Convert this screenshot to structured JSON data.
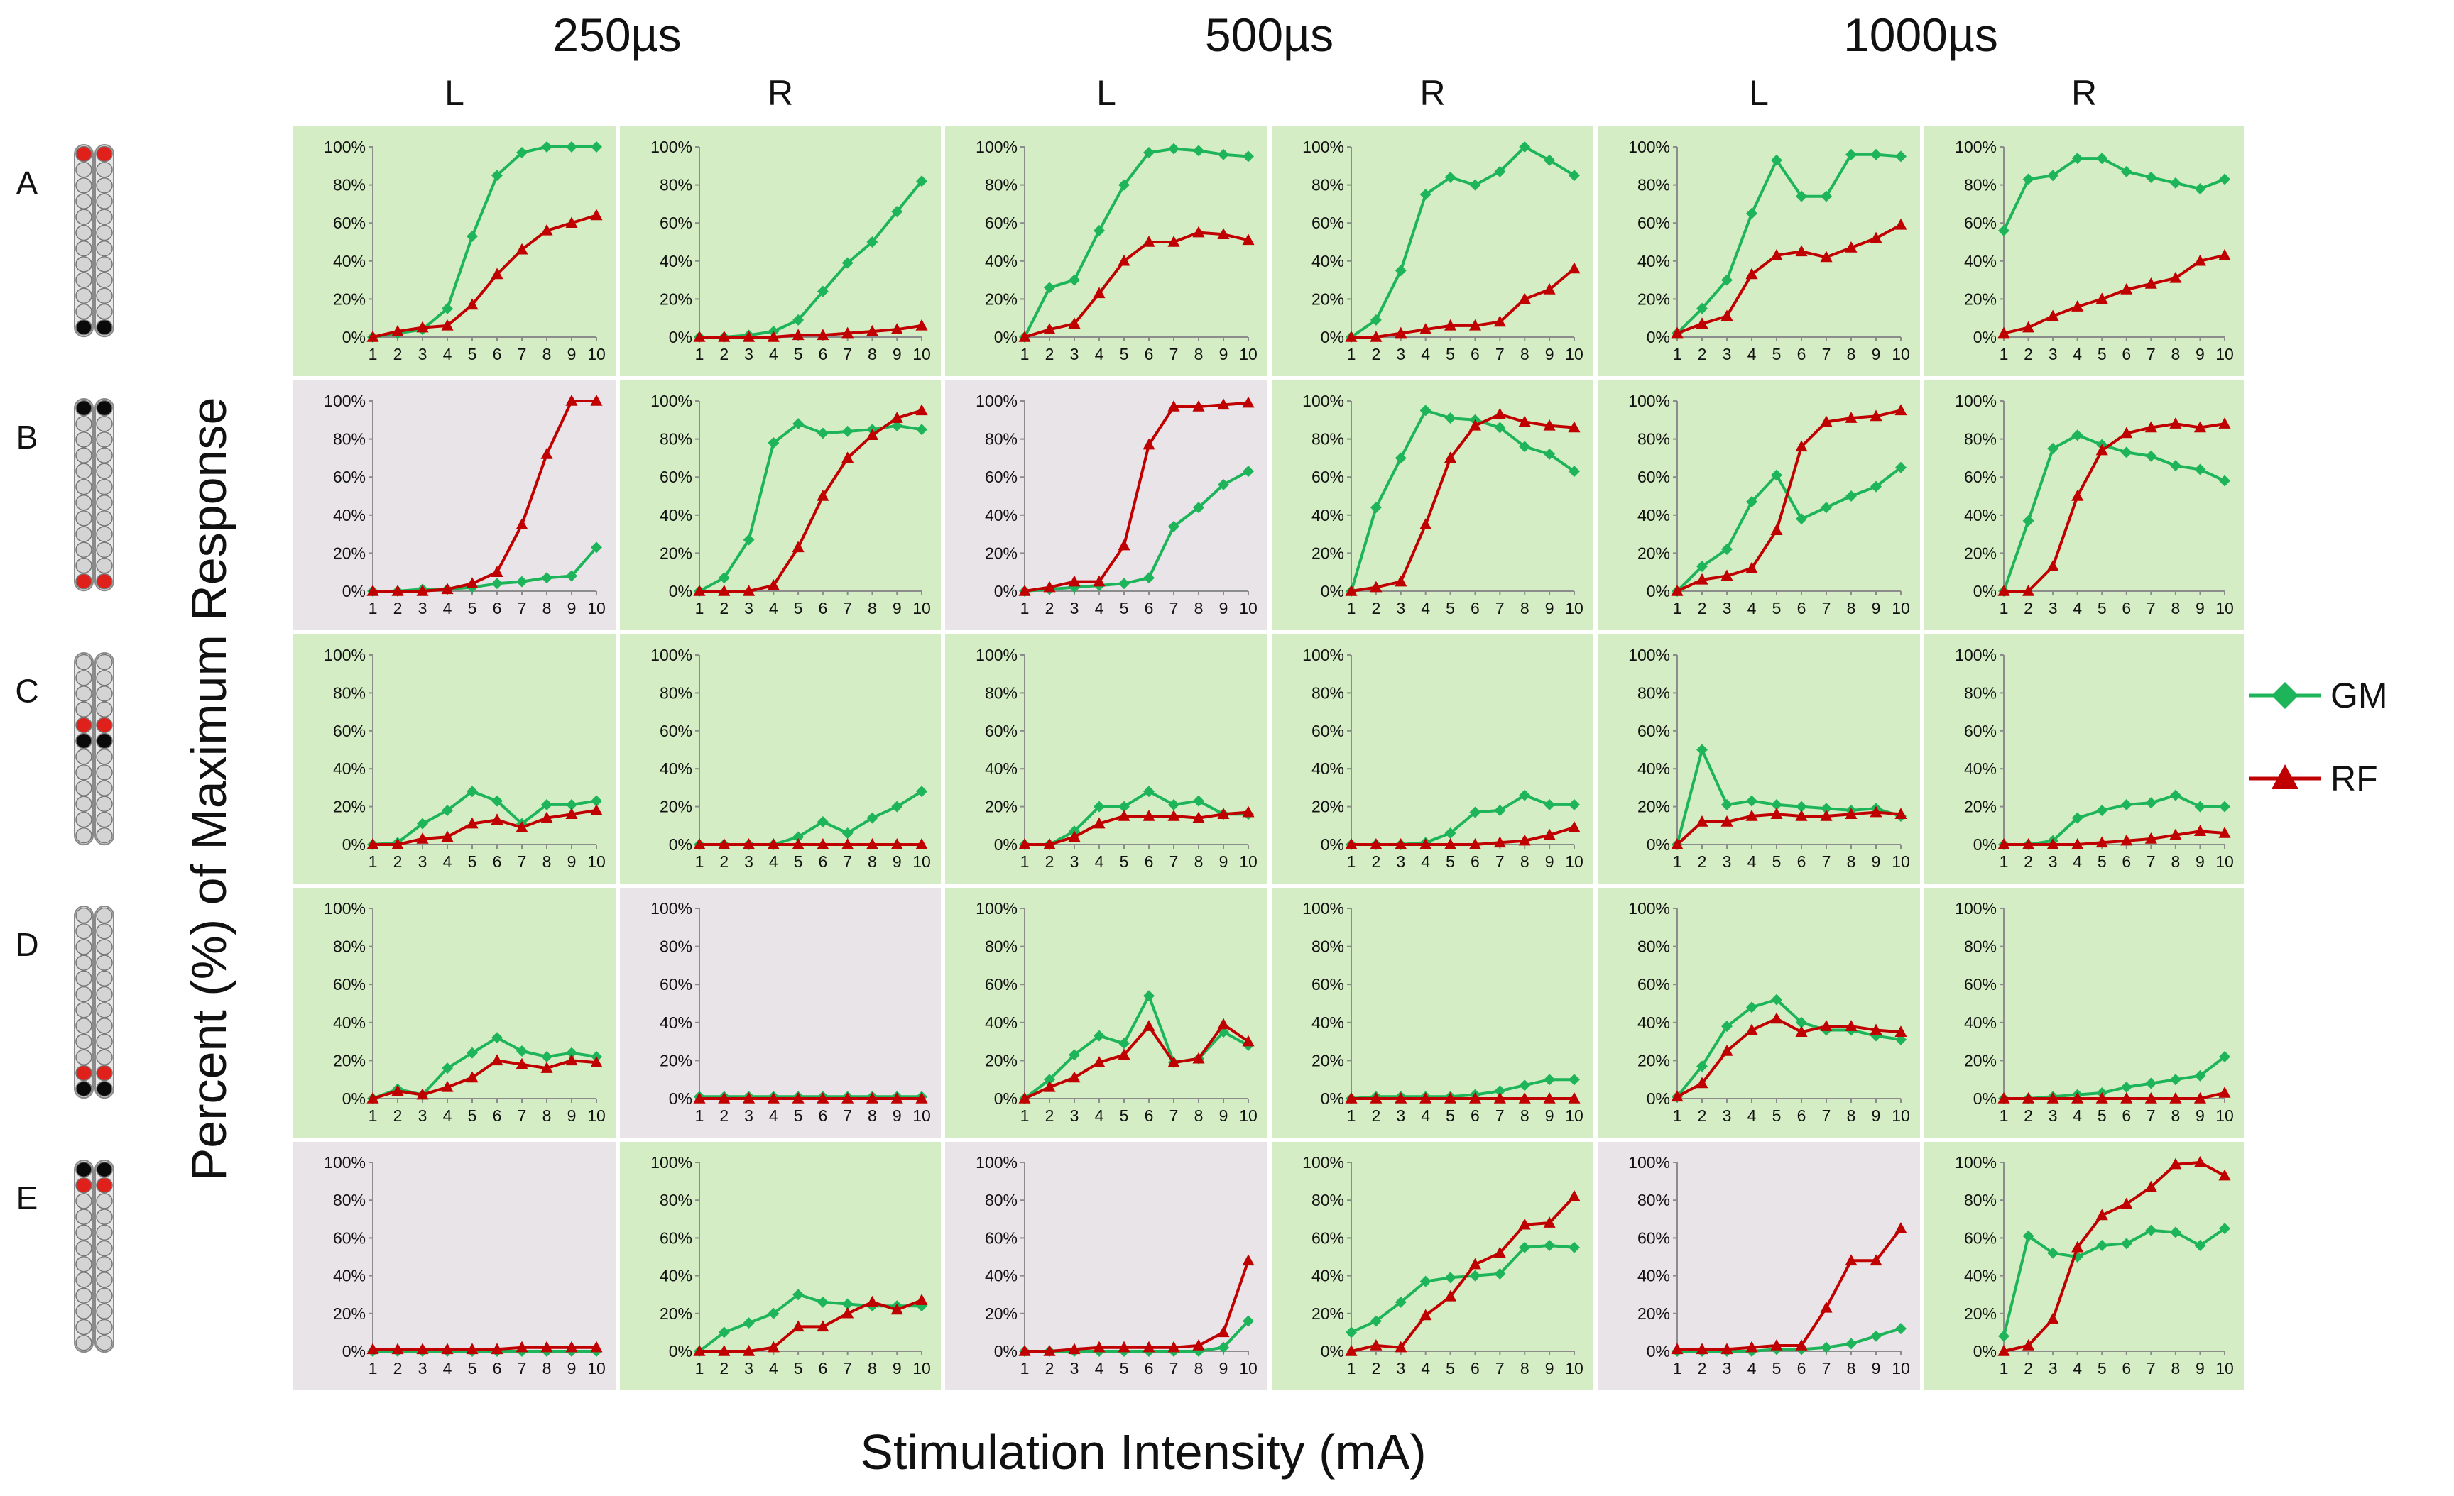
{
  "figure": {
    "ylabel": "Percent (%) of Maximum Response",
    "xlabel": "Stimulation Intensity (mA)",
    "pulse_widths": [
      "250µs",
      "500µs",
      "1000µs"
    ],
    "sides": [
      "L",
      "R",
      "L",
      "R",
      "L",
      "R"
    ],
    "rows": [
      "A",
      "B",
      "C",
      "D",
      "E"
    ],
    "y_ticks": [
      "0%",
      "20%",
      "40%",
      "60%",
      "80%",
      "100%"
    ],
    "x_ticks": [
      "1",
      "2",
      "3",
      "4",
      "5",
      "6",
      "7",
      "8",
      "9",
      "10"
    ],
    "legend": [
      {
        "name": "GM",
        "color": "#1db45a",
        "marker": "diamond"
      },
      {
        "name": "RF",
        "color": "#c00000",
        "marker": "triangle"
      }
    ],
    "colors": {
      "green_bg": "#d5edc4",
      "gray_bg": "#e8e4e7",
      "gm": "#1db45a",
      "rf": "#c00000",
      "contact_gray": "#d4d4d4",
      "contact_red": "#e0201b",
      "contact_black": "#0a0a0a"
    },
    "electrode_configs": [
      {
        "row": "A",
        "red": [
          0
        ],
        "black": [
          11
        ]
      },
      {
        "row": "B",
        "red": [
          11
        ],
        "black": [
          0
        ]
      },
      {
        "row": "C",
        "red": [
          4
        ],
        "black": [
          5
        ]
      },
      {
        "row": "D",
        "red": [
          10
        ],
        "black": [
          11
        ]
      },
      {
        "row": "E",
        "red": [
          1
        ],
        "black": [
          0
        ]
      }
    ]
  },
  "chart_data": {
    "type": "line",
    "x": [
      1,
      2,
      3,
      4,
      5,
      6,
      7,
      8,
      9,
      10
    ],
    "ylim": [
      0,
      100
    ],
    "xlabel": "Stimulation Intensity (mA)",
    "ylabel": "Percent (%) of Maximum Response",
    "panels": [
      {
        "row": "A",
        "pulse_width": "250µs",
        "side": "L",
        "background": "green",
        "GM": [
          0,
          2,
          4,
          15,
          53,
          85,
          97,
          100,
          100,
          100
        ],
        "RF": [
          0,
          3,
          5,
          6,
          17,
          33,
          46,
          56,
          60,
          64
        ]
      },
      {
        "row": "A",
        "pulse_width": "250µs",
        "side": "R",
        "background": "green",
        "GM": [
          0,
          0,
          1,
          3,
          9,
          24,
          39,
          50,
          66,
          82
        ],
        "RF": [
          0,
          0,
          0,
          0,
          1,
          1,
          2,
          3,
          4,
          6
        ]
      },
      {
        "row": "A",
        "pulse_width": "500µs",
        "side": "L",
        "background": "green",
        "GM": [
          0,
          26,
          30,
          56,
          80,
          97,
          99,
          98,
          96,
          95
        ],
        "RF": [
          0,
          4,
          7,
          23,
          40,
          50,
          50,
          55,
          54,
          51
        ]
      },
      {
        "row": "A",
        "pulse_width": "500µs",
        "side": "R",
        "background": "green",
        "GM": [
          0,
          9,
          35,
          75,
          84,
          80,
          87,
          100,
          93,
          85
        ],
        "RF": [
          0,
          0,
          2,
          4,
          6,
          6,
          8,
          20,
          25,
          36
        ]
      },
      {
        "row": "A",
        "pulse_width": "1000µs",
        "side": "L",
        "background": "green",
        "GM": [
          2,
          15,
          30,
          65,
          93,
          74,
          74,
          96,
          96,
          95
        ],
        "RF": [
          2,
          7,
          11,
          33,
          43,
          45,
          42,
          47,
          52,
          59
        ]
      },
      {
        "row": "A",
        "pulse_width": "1000µs",
        "side": "R",
        "background": "green",
        "GM": [
          56,
          83,
          85,
          94,
          94,
          87,
          84,
          81,
          78,
          83
        ],
        "RF": [
          2,
          5,
          11,
          16,
          20,
          25,
          28,
          31,
          40,
          43
        ]
      },
      {
        "row": "B",
        "pulse_width": "250µs",
        "side": "L",
        "background": "gray",
        "GM": [
          0,
          0,
          1,
          1,
          2,
          4,
          5,
          7,
          8,
          23
        ],
        "RF": [
          0,
          0,
          0,
          1,
          4,
          10,
          35,
          72,
          100,
          100
        ]
      },
      {
        "row": "B",
        "pulse_width": "250µs",
        "side": "R",
        "background": "green",
        "GM": [
          0,
          7,
          27,
          78,
          88,
          83,
          84,
          85,
          87,
          85
        ],
        "RF": [
          0,
          0,
          0,
          3,
          23,
          50,
          70,
          82,
          91,
          95
        ]
      },
      {
        "row": "B",
        "pulse_width": "500µs",
        "side": "L",
        "background": "gray",
        "GM": [
          0,
          1,
          2,
          3,
          4,
          7,
          34,
          44,
          56,
          63
        ],
        "RF": [
          0,
          2,
          5,
          5,
          24,
          77,
          97,
          97,
          98,
          99
        ]
      },
      {
        "row": "B",
        "pulse_width": "500µs",
        "side": "R",
        "background": "green",
        "GM": [
          0,
          44,
          70,
          95,
          91,
          90,
          86,
          76,
          72,
          63
        ],
        "RF": [
          0,
          2,
          5,
          35,
          70,
          87,
          93,
          89,
          87,
          86
        ]
      },
      {
        "row": "B",
        "pulse_width": "1000µs",
        "side": "L",
        "background": "green",
        "GM": [
          0,
          13,
          22,
          47,
          61,
          38,
          44,
          50,
          55,
          65
        ],
        "RF": [
          0,
          6,
          8,
          12,
          32,
          76,
          89,
          91,
          92,
          95
        ]
      },
      {
        "row": "B",
        "pulse_width": "1000µs",
        "side": "R",
        "background": "green",
        "GM": [
          0,
          37,
          75,
          82,
          77,
          73,
          71,
          66,
          64,
          58
        ],
        "RF": [
          0,
          0,
          13,
          50,
          74,
          83,
          86,
          88,
          86,
          88
        ]
      },
      {
        "row": "C",
        "pulse_width": "250µs",
        "side": "L",
        "background": "green",
        "GM": [
          0,
          1,
          11,
          18,
          28,
          23,
          11,
          21,
          21,
          23
        ],
        "RF": [
          0,
          0,
          3,
          4,
          11,
          13,
          9,
          14,
          16,
          18
        ]
      },
      {
        "row": "C",
        "pulse_width": "250µs",
        "side": "R",
        "background": "green",
        "GM": [
          0,
          0,
          0,
          0,
          4,
          12,
          6,
          14,
          20,
          28
        ],
        "RF": [
          0,
          0,
          0,
          0,
          0,
          0,
          0,
          0,
          0,
          0
        ]
      },
      {
        "row": "C",
        "pulse_width": "500µs",
        "side": "L",
        "background": "green",
        "GM": [
          0,
          0,
          7,
          20,
          20,
          28,
          21,
          23,
          16,
          16
        ],
        "RF": [
          0,
          0,
          4,
          11,
          15,
          15,
          15,
          14,
          16,
          17
        ]
      },
      {
        "row": "C",
        "pulse_width": "500µs",
        "side": "R",
        "background": "green",
        "GM": [
          0,
          0,
          0,
          1,
          6,
          17,
          18,
          26,
          21,
          21
        ],
        "RF": [
          0,
          0,
          0,
          0,
          0,
          0,
          1,
          2,
          5,
          9
        ]
      },
      {
        "row": "C",
        "pulse_width": "1000µs",
        "side": "L",
        "background": "green",
        "GM": [
          0,
          50,
          21,
          23,
          21,
          20,
          19,
          18,
          19,
          15
        ],
        "RF": [
          0,
          12,
          12,
          15,
          16,
          15,
          15,
          16,
          17,
          16
        ]
      },
      {
        "row": "C",
        "pulse_width": "1000µs",
        "side": "R",
        "background": "green",
        "GM": [
          0,
          0,
          2,
          14,
          18,
          21,
          22,
          26,
          20,
          20
        ],
        "RF": [
          0,
          0,
          0,
          0,
          1,
          2,
          3,
          5,
          7,
          6
        ]
      },
      {
        "row": "D",
        "pulse_width": "250µs",
        "side": "L",
        "background": "green",
        "GM": [
          0,
          5,
          2,
          16,
          24,
          32,
          25,
          22,
          24,
          22
        ],
        "RF": [
          0,
          4,
          2,
          6,
          11,
          20,
          18,
          16,
          20,
          19
        ]
      },
      {
        "row": "D",
        "pulse_width": "250µs",
        "side": "R",
        "background": "gray",
        "GM": [
          1,
          1,
          1,
          1,
          1,
          1,
          1,
          1,
          1,
          1
        ],
        "RF": [
          0,
          0,
          0,
          0,
          0,
          0,
          0,
          0,
          0,
          0
        ]
      },
      {
        "row": "D",
        "pulse_width": "500µs",
        "side": "L",
        "background": "green",
        "GM": [
          0,
          10,
          23,
          33,
          29,
          54,
          19,
          21,
          35,
          28
        ],
        "RF": [
          0,
          6,
          11,
          19,
          23,
          38,
          19,
          21,
          39,
          30
        ]
      },
      {
        "row": "D",
        "pulse_width": "500µs",
        "side": "R",
        "background": "green",
        "GM": [
          0,
          1,
          1,
          1,
          1,
          2,
          4,
          7,
          10,
          10
        ],
        "RF": [
          0,
          0,
          0,
          0,
          0,
          0,
          0,
          0,
          0,
          0
        ]
      },
      {
        "row": "D",
        "pulse_width": "1000µs",
        "side": "L",
        "background": "green",
        "GM": [
          1,
          17,
          38,
          48,
          52,
          40,
          36,
          36,
          33,
          31
        ],
        "RF": [
          1,
          8,
          25,
          36,
          42,
          35,
          38,
          38,
          36,
          35
        ]
      },
      {
        "row": "D",
        "pulse_width": "1000µs",
        "side": "R",
        "background": "green",
        "GM": [
          0,
          0,
          1,
          2,
          3,
          6,
          8,
          10,
          12,
          22
        ],
        "RF": [
          0,
          0,
          0,
          0,
          0,
          0,
          0,
          0,
          0,
          3
        ]
      },
      {
        "row": "E",
        "pulse_width": "250µs",
        "side": "L",
        "background": "gray",
        "GM": [
          0,
          0,
          0,
          0,
          0,
          0,
          0,
          0,
          0,
          0
        ],
        "RF": [
          1,
          1,
          1,
          1,
          1,
          1,
          2,
          2,
          2,
          2
        ]
      },
      {
        "row": "E",
        "pulse_width": "250µs",
        "side": "R",
        "background": "green",
        "GM": [
          0,
          10,
          15,
          20,
          30,
          26,
          25,
          24,
          24,
          24
        ],
        "RF": [
          0,
          0,
          0,
          2,
          13,
          13,
          20,
          26,
          22,
          27
        ]
      },
      {
        "row": "E",
        "pulse_width": "500µs",
        "side": "L",
        "background": "gray",
        "GM": [
          0,
          0,
          0,
          0,
          0,
          0,
          0,
          0,
          2,
          16
        ],
        "RF": [
          0,
          0,
          1,
          2,
          2,
          2,
          2,
          3,
          10,
          48
        ]
      },
      {
        "row": "E",
        "pulse_width": "500µs",
        "side": "R",
        "background": "green",
        "GM": [
          10,
          16,
          26,
          37,
          39,
          40,
          41,
          55,
          56,
          55
        ],
        "RF": [
          0,
          3,
          2,
          19,
          29,
          46,
          52,
          67,
          68,
          82
        ]
      },
      {
        "row": "E",
        "pulse_width": "1000µs",
        "side": "L",
        "background": "gray",
        "GM": [
          0,
          0,
          0,
          0,
          1,
          1,
          2,
          4,
          8,
          12
        ],
        "RF": [
          1,
          1,
          1,
          2,
          3,
          3,
          23,
          48,
          48,
          65
        ]
      },
      {
        "row": "E",
        "pulse_width": "1000µs",
        "side": "R",
        "background": "green",
        "GM": [
          8,
          61,
          52,
          50,
          56,
          57,
          64,
          63,
          56,
          65
        ],
        "RF": [
          0,
          3,
          17,
          55,
          72,
          78,
          87,
          99,
          100,
          93
        ]
      }
    ]
  }
}
